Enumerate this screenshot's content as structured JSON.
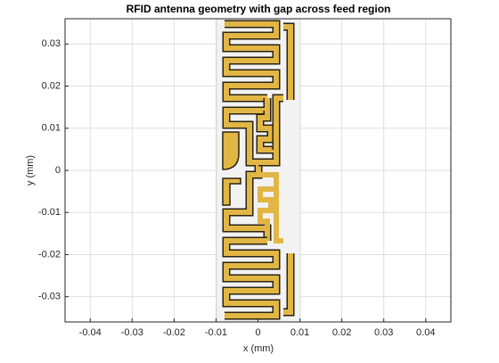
{
  "chart_data": {
    "type": "geometry",
    "title": "RFID antenna geometry with gap across feed region",
    "xlabel": "x (mm)",
    "ylabel": "y (mm)",
    "xlim": [
      -0.046,
      0.046
    ],
    "ylim": [
      -0.036,
      0.036
    ],
    "xticks": [
      -0.04,
      -0.03,
      -0.02,
      -0.01,
      0,
      0.01,
      0.02,
      0.03,
      0.04
    ],
    "yticks": [
      -0.03,
      -0.02,
      -0.01,
      0,
      0.01,
      0.02,
      0.03
    ],
    "grid": true
  }
}
